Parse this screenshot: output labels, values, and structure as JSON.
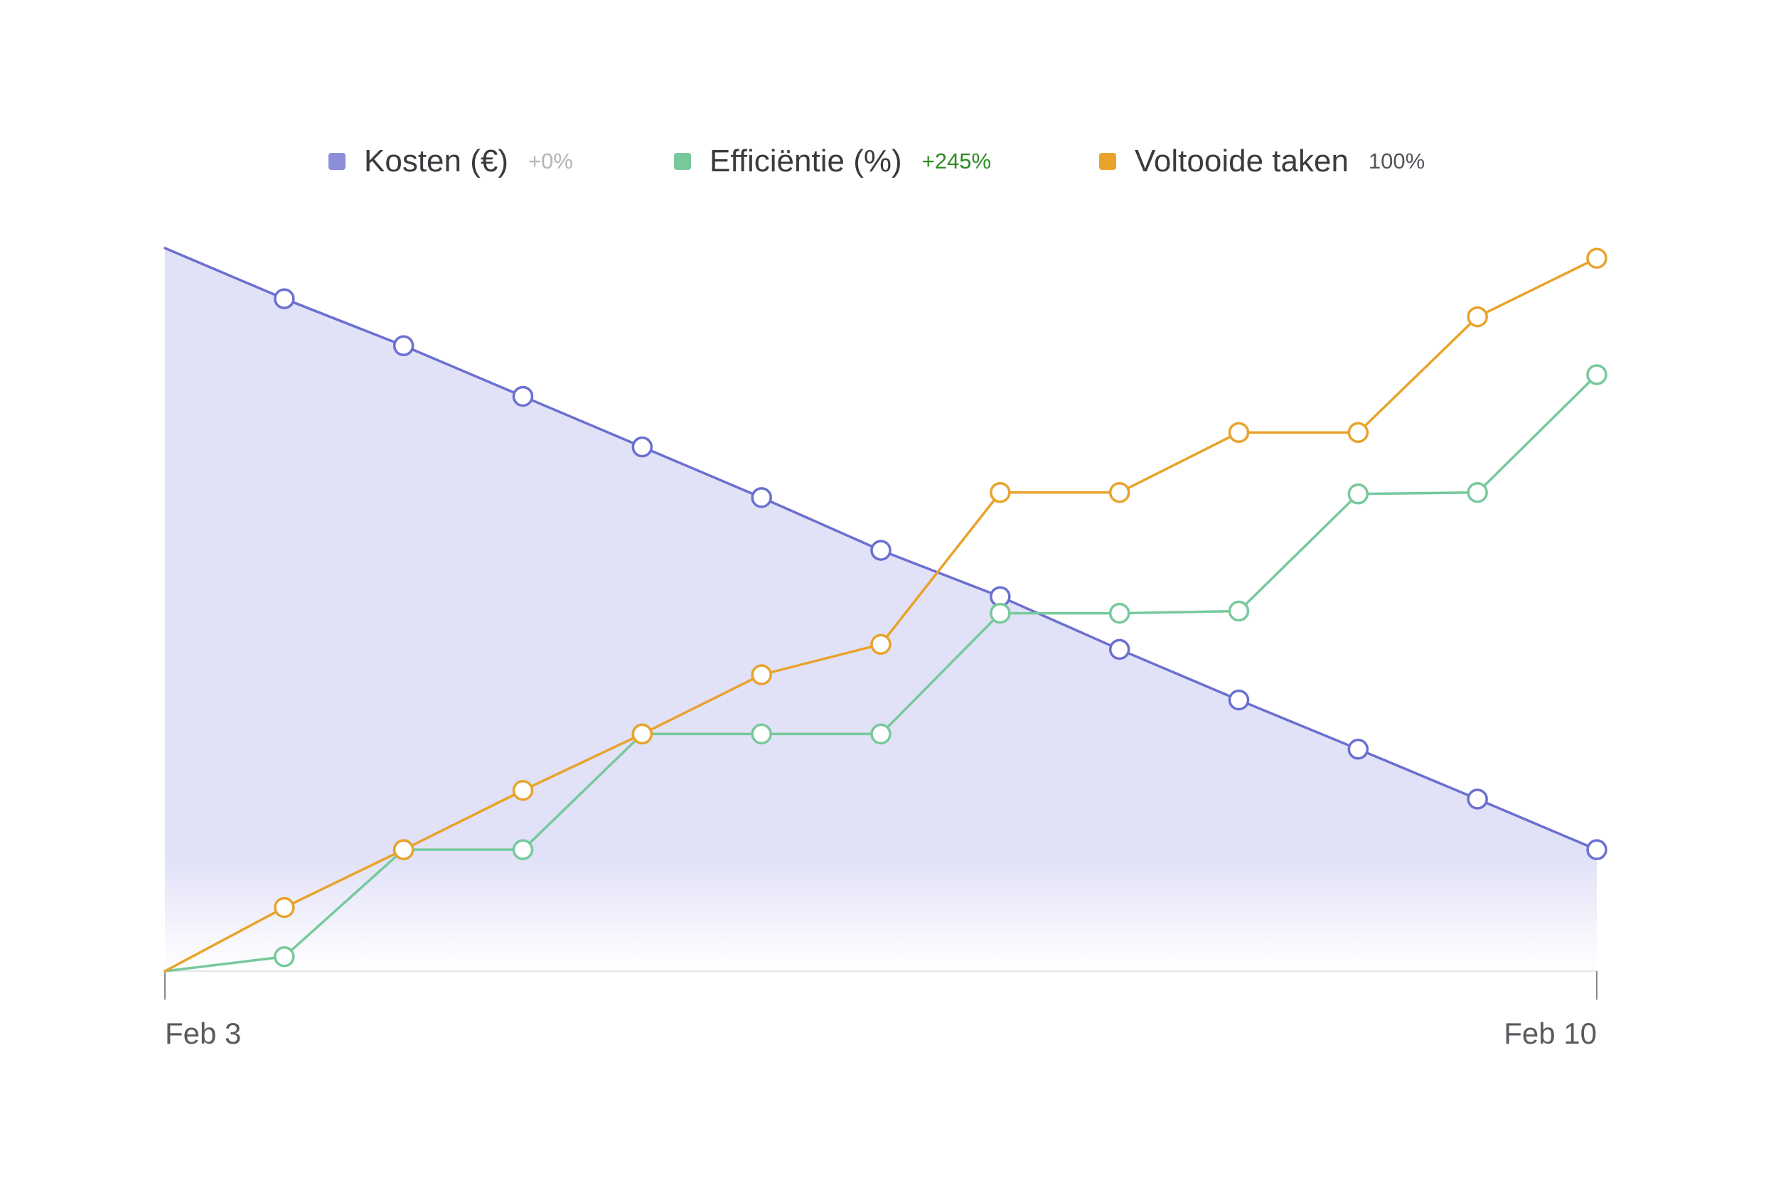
{
  "colors": {
    "kosten": "#6b6fd0",
    "kosten_swatch": "#8b8ed9",
    "kosten_fill_top": "#e1e1f8",
    "efficientie": "#77c99c",
    "voltooide": "#e8a32b",
    "change_neutral": "#b4b4ba",
    "change_positive": "#2e8b22",
    "change_plain": "#55555b",
    "axis": "#c8c8cc"
  },
  "legend": [
    {
      "key": "kosten",
      "label": "Kosten (€)",
      "change": "+0%",
      "change_color": "#b4b4ba",
      "icon": "square-swatch"
    },
    {
      "key": "efficientie",
      "label": "Efficiëntie (%)",
      "change": "+245%",
      "change_color": "#2e8b22",
      "icon": "square-swatch"
    },
    {
      "key": "voltooide",
      "label": "Voltooide taken",
      "change": "100%",
      "change_color": "#55555b",
      "icon": "square-swatch"
    }
  ],
  "chart_data": {
    "type": "line",
    "title": "",
    "xlabel": "",
    "ylabel": "",
    "x": [
      0,
      1,
      2,
      3,
      4,
      5,
      6,
      7,
      8,
      9,
      10,
      11,
      12
    ],
    "x_tick_labels": [
      "Feb 3",
      "Feb 10"
    ],
    "ylim": [
      0,
      100
    ],
    "grid": false,
    "legend_position": "top-center",
    "series": [
      {
        "name": "Kosten (€)",
        "key": "kosten",
        "area": true,
        "values": [
          100,
          93,
          86.5,
          79.5,
          72.5,
          65.5,
          58.2,
          51.8,
          44.5,
          37.5,
          30.7,
          23.8,
          16.8
        ]
      },
      {
        "name": "Efficiëntie (%)",
        "key": "efficientie",
        "area": false,
        "values": [
          0,
          2,
          16.8,
          16.8,
          32.8,
          32.8,
          32.8,
          49.5,
          49.5,
          49.8,
          66,
          66.2,
          82.5
        ]
      },
      {
        "name": "Voltooide taken",
        "key": "voltooide",
        "area": false,
        "values": [
          0,
          8.8,
          16.8,
          25,
          32.8,
          41,
          45.2,
          66.2,
          66.2,
          74.5,
          74.5,
          90.5,
          98.6
        ]
      }
    ]
  }
}
